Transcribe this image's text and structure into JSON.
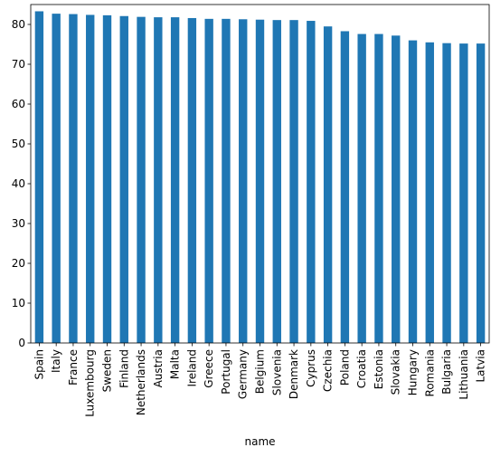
{
  "chart_data": {
    "type": "bar",
    "xlabel": "name",
    "ylabel": "",
    "ylim": [
      0,
      85
    ],
    "yticks": [
      0,
      10,
      20,
      30,
      40,
      50,
      60,
      70,
      80
    ],
    "bar_color": "#1f77b4",
    "grid": false,
    "categories": [
      "Spain",
      "Italy",
      "France",
      "Luxembourg",
      "Sweden",
      "Finland",
      "Netherlands",
      "Austria",
      "Malta",
      "Ireland",
      "Greece",
      "Portugal",
      "Germany",
      "Belgium",
      "Slovenia",
      "Denmark",
      "Cyprus",
      "Czechia",
      "Poland",
      "Croatia",
      "Estonia",
      "Slovakia",
      "Hungary",
      "Romania",
      "Bulgaria",
      "Lithuania",
      "Latvia"
    ],
    "values": [
      83.3,
      82.7,
      82.6,
      82.4,
      82.3,
      82.1,
      81.9,
      81.8,
      81.8,
      81.6,
      81.4,
      81.4,
      81.3,
      81.2,
      81.1,
      81.1,
      80.9,
      79.5,
      78.3,
      77.6,
      77.6,
      77.2,
      76.0,
      75.5,
      75.3,
      75.2,
      75.2
    ]
  }
}
